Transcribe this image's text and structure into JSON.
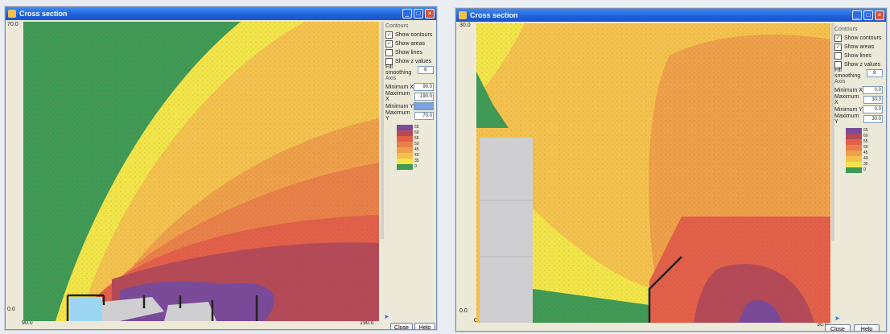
{
  "windows": [
    {
      "title": "Cross section",
      "y_max": "70.0",
      "y_min": "0.0",
      "x_min": "90.0",
      "x_max": "190.0",
      "contours_title": "Contours",
      "checkboxes": [
        {
          "label": "Show contours",
          "checked": true
        },
        {
          "label": "Show areas",
          "checked": true
        },
        {
          "label": "Show lines",
          "checked": false
        },
        {
          "label": "Show z values",
          "checked": false
        }
      ],
      "fill_label": "Fill smoothing",
      "fill_value": "8",
      "axis_title": "Axis",
      "fields": [
        {
          "label": "Minimum X",
          "value": "90.0"
        },
        {
          "label": "Maximum X",
          "value": "190.0"
        },
        {
          "label": "Minimum Y",
          "value": ""
        },
        {
          "label": "Maximum Y",
          "value": "70.0"
        }
      ],
      "legend": [
        "65",
        "60",
        "55",
        "50",
        "45",
        "40",
        "35",
        "0"
      ]
    },
    {
      "title": "Cross section",
      "y_max": "30.0",
      "y_min": "0.0",
      "x_min": "0.0",
      "x_max": "30.0",
      "contours_title": "Contours",
      "checkboxes": [
        {
          "label": "Show contours",
          "checked": true
        },
        {
          "label": "Show areas",
          "checked": true
        },
        {
          "label": "Show lines",
          "checked": false
        },
        {
          "label": "Show z values",
          "checked": false
        }
      ],
      "fill_label": "Fill smoothing",
      "fill_value": "8",
      "axis_title": "Axis",
      "fields": [
        {
          "label": "Minimum X",
          "value": "0.0"
        },
        {
          "label": "Maximum X",
          "value": "30.0"
        },
        {
          "label": "Minimum Y",
          "value": "0.0"
        },
        {
          "label": "Maximum Y",
          "value": "30.0"
        }
      ],
      "legend": [
        "65",
        "60",
        "55",
        "50",
        "45",
        "40",
        "35",
        "0"
      ],
      "close_label": "Close",
      "help_label": "Help"
    }
  ],
  "colors": {
    "green": "#3f9a55",
    "yellow": "#f1e54a",
    "light_orange": "#f3c24e",
    "orange": "#eea04a",
    "dark_orange": "#e8804a",
    "red": "#e2604a",
    "dark_red": "#b44a58",
    "purple": "#7a4a9a",
    "gray": "#cfcfd2",
    "light_blue": "#9dd6f2"
  },
  "close_left_label": "Close",
  "help_left_label": "Help"
}
